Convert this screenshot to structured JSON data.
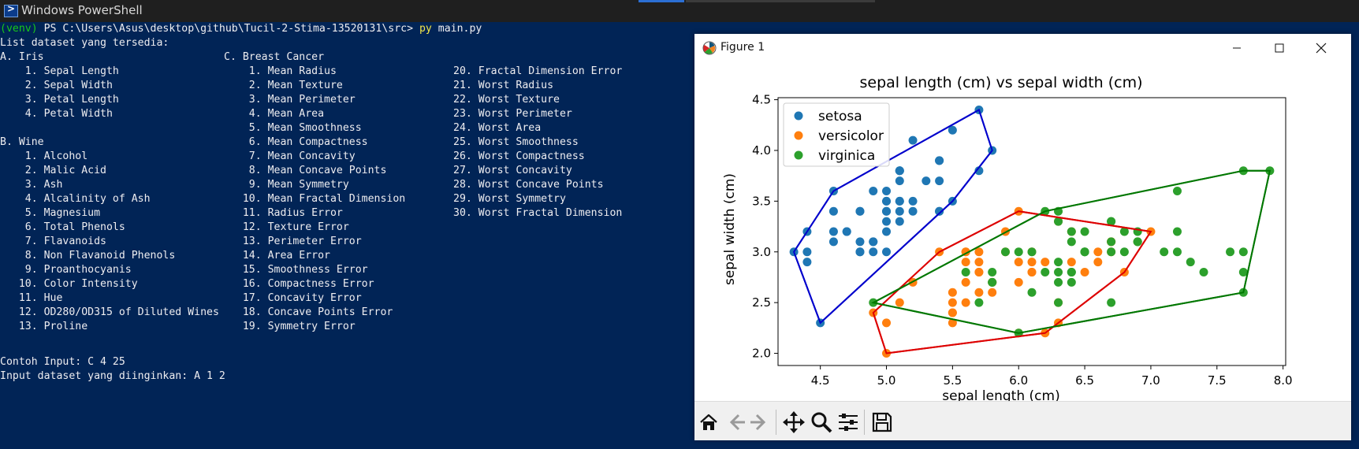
{
  "window": {
    "title": "Windows PowerShell"
  },
  "terminal": {
    "prompt_env": "(venv)",
    "prompt_path": " PS C:\\Users\\Asus\\desktop\\github\\Tucil-2-Stima-13520131\\src> ",
    "prompt_cmd": "py",
    "prompt_arg": " main.py",
    "heading": "List dataset yang tersedia:",
    "col_a": [
      "A. Iris",
      "    1. Sepal Length",
      "    2. Sepal Width",
      "    3. Petal Length",
      "    4. Petal Width",
      "",
      "B. Wine",
      "    1. Alcohol",
      "    2. Malic Acid",
      "    3. Ash",
      "    4. Alcalinity of Ash",
      "    5. Magnesium",
      "    6. Total Phenols",
      "    7. Flavanoids",
      "    8. Non Flavanoid Phenols",
      "    9. Proanthocyanis",
      "   10. Color Intensity",
      "   11. Hue",
      "   12. OD280/OD315 of Diluted Wines",
      "   13. Proline"
    ],
    "col_c": [
      "C. Breast Cancer",
      "    1. Mean Radius",
      "    2. Mean Texture",
      "    3. Mean Perimeter",
      "    4. Mean Area",
      "    5. Mean Smoothness",
      "    6. Mean Compactness",
      "    7. Mean Concavity",
      "    8. Mean Concave Points",
      "    9. Mean Symmetry",
      "   10. Mean Fractal Dimension",
      "   11. Radius Error",
      "   12. Texture Error",
      "   13. Perimeter Error",
      "   14. Area Error",
      "   15. Smoothness Error",
      "   16. Compactness Error",
      "   17. Concavity Error",
      "   18. Concave Points Error",
      "   19. Symmetry Error"
    ],
    "col_d": [
      "",
      "20. Fractal Dimension Error",
      "21. Worst Radius",
      "22. Worst Texture",
      "23. Worst Perimeter",
      "24. Worst Area",
      "25. Worst Smoothness",
      "26. Worst Compactness",
      "27. Worst Concavity",
      "28. Worst Concave Points",
      "29. Worst Symmetry",
      "30. Worst Fractal Dimension"
    ],
    "example": "Contoh Input: C 4 25",
    "input_prompt": "Input dataset yang diinginkan: A 1 2"
  },
  "figure": {
    "window_title": "Figure 1",
    "toolbar": {
      "home": "home-icon",
      "back": "arrow-left-icon",
      "forward": "arrow-right-icon",
      "pan": "move-icon",
      "zoom": "magnifier-icon",
      "configure": "sliders-icon",
      "save": "floppy-disk-icon"
    }
  },
  "chart_data": {
    "type": "scatter",
    "title": "sepal length (cm) vs sepal width (cm)",
    "xlabel": "sepal length (cm)",
    "ylabel": "sepal width (cm)",
    "xlim": [
      4.18,
      8.02
    ],
    "ylim": [
      1.88,
      4.52
    ],
    "xticks": [
      4.5,
      5.0,
      5.5,
      6.0,
      6.5,
      7.0,
      7.5,
      8.0
    ],
    "yticks": [
      2.0,
      2.5,
      3.0,
      3.5,
      4.0,
      4.5
    ],
    "tick_format": 1,
    "grid": false,
    "legend_position": "top-left",
    "series": [
      {
        "name": "setosa",
        "color": "#1f77b4",
        "hull_color": "#0000cc",
        "points": [
          [
            5.1,
            3.5
          ],
          [
            4.9,
            3.0
          ],
          [
            4.7,
            3.2
          ],
          [
            4.6,
            3.1
          ],
          [
            5.0,
            3.6
          ],
          [
            5.4,
            3.9
          ],
          [
            4.6,
            3.4
          ],
          [
            5.0,
            3.4
          ],
          [
            4.4,
            2.9
          ],
          [
            4.9,
            3.1
          ],
          [
            5.4,
            3.7
          ],
          [
            4.8,
            3.4
          ],
          [
            4.8,
            3.0
          ],
          [
            4.3,
            3.0
          ],
          [
            5.8,
            4.0
          ],
          [
            5.7,
            4.4
          ],
          [
            5.4,
            3.9
          ],
          [
            5.1,
            3.5
          ],
          [
            5.7,
            3.8
          ],
          [
            5.1,
            3.8
          ],
          [
            5.4,
            3.4
          ],
          [
            5.1,
            3.7
          ],
          [
            4.6,
            3.6
          ],
          [
            5.1,
            3.3
          ],
          [
            4.8,
            3.4
          ],
          [
            5.0,
            3.0
          ],
          [
            5.0,
            3.4
          ],
          [
            5.2,
            3.5
          ],
          [
            5.2,
            3.4
          ],
          [
            4.7,
            3.2
          ],
          [
            4.8,
            3.1
          ],
          [
            5.4,
            3.4
          ],
          [
            5.2,
            4.1
          ],
          [
            5.5,
            4.2
          ],
          [
            4.9,
            3.1
          ],
          [
            5.0,
            3.2
          ],
          [
            5.5,
            3.5
          ],
          [
            4.9,
            3.6
          ],
          [
            4.4,
            3.0
          ],
          [
            5.1,
            3.4
          ],
          [
            5.0,
            3.5
          ],
          [
            4.5,
            2.3
          ],
          [
            4.4,
            3.2
          ],
          [
            5.0,
            3.5
          ],
          [
            5.1,
            3.8
          ],
          [
            4.8,
            3.0
          ],
          [
            5.1,
            3.8
          ],
          [
            4.6,
            3.2
          ],
          [
            5.3,
            3.7
          ],
          [
            5.0,
            3.3
          ]
        ],
        "hull": [
          [
            4.5,
            2.3
          ],
          [
            5.5,
            3.5
          ],
          [
            5.8,
            4.0
          ],
          [
            5.7,
            4.4
          ],
          [
            4.6,
            3.6
          ],
          [
            4.4,
            3.2
          ],
          [
            4.3,
            3.0
          ]
        ]
      },
      {
        "name": "versicolor",
        "color": "#ff7f0e",
        "hull_color": "#dd0000",
        "points": [
          [
            7.0,
            3.2
          ],
          [
            6.4,
            3.2
          ],
          [
            6.9,
            3.1
          ],
          [
            5.5,
            2.3
          ],
          [
            6.5,
            2.8
          ],
          [
            5.7,
            2.8
          ],
          [
            6.3,
            3.3
          ],
          [
            4.9,
            2.4
          ],
          [
            6.6,
            2.9
          ],
          [
            5.2,
            2.7
          ],
          [
            5.0,
            2.0
          ],
          [
            5.9,
            3.0
          ],
          [
            6.0,
            2.2
          ],
          [
            6.1,
            2.9
          ],
          [
            5.6,
            2.9
          ],
          [
            6.7,
            3.1
          ],
          [
            5.6,
            3.0
          ],
          [
            5.8,
            2.7
          ],
          [
            6.2,
            2.2
          ],
          [
            5.6,
            2.5
          ],
          [
            5.9,
            3.2
          ],
          [
            6.1,
            2.8
          ],
          [
            6.3,
            2.5
          ],
          [
            6.1,
            2.8
          ],
          [
            6.4,
            2.9
          ],
          [
            6.6,
            3.0
          ],
          [
            6.8,
            2.8
          ],
          [
            6.7,
            3.0
          ],
          [
            6.0,
            2.9
          ],
          [
            5.7,
            2.6
          ],
          [
            5.5,
            2.4
          ],
          [
            5.5,
            2.4
          ],
          [
            5.8,
            2.7
          ],
          [
            6.0,
            2.7
          ],
          [
            5.4,
            3.0
          ],
          [
            6.0,
            3.4
          ],
          [
            6.7,
            3.1
          ],
          [
            6.3,
            2.3
          ],
          [
            5.6,
            3.0
          ],
          [
            5.5,
            2.5
          ],
          [
            5.5,
            2.6
          ],
          [
            6.1,
            3.0
          ],
          [
            5.8,
            2.6
          ],
          [
            5.0,
            2.3
          ],
          [
            5.6,
            2.7
          ],
          [
            5.7,
            3.0
          ],
          [
            5.7,
            2.9
          ],
          [
            6.2,
            2.9
          ],
          [
            5.1,
            2.5
          ],
          [
            5.7,
            2.8
          ]
        ],
        "hull": [
          [
            5.0,
            2.0
          ],
          [
            6.2,
            2.2
          ],
          [
            6.8,
            2.8
          ],
          [
            7.0,
            3.2
          ],
          [
            6.0,
            3.4
          ],
          [
            5.4,
            3.0
          ],
          [
            4.9,
            2.4
          ]
        ]
      },
      {
        "name": "virginica",
        "color": "#2ca02c",
        "hull_color": "#007700",
        "points": [
          [
            6.3,
            3.3
          ],
          [
            5.8,
            2.7
          ],
          [
            7.1,
            3.0
          ],
          [
            6.3,
            2.9
          ],
          [
            6.5,
            3.0
          ],
          [
            7.6,
            3.0
          ],
          [
            4.9,
            2.5
          ],
          [
            7.3,
            2.9
          ],
          [
            6.7,
            2.5
          ],
          [
            7.2,
            3.6
          ],
          [
            6.5,
            3.2
          ],
          [
            6.4,
            2.7
          ],
          [
            6.8,
            3.0
          ],
          [
            5.7,
            2.5
          ],
          [
            5.8,
            2.8
          ],
          [
            6.4,
            3.2
          ],
          [
            6.5,
            3.0
          ],
          [
            7.7,
            3.8
          ],
          [
            7.7,
            2.6
          ],
          [
            6.0,
            2.2
          ],
          [
            6.9,
            3.2
          ],
          [
            5.6,
            2.8
          ],
          [
            7.7,
            2.8
          ],
          [
            6.3,
            2.7
          ],
          [
            6.7,
            3.3
          ],
          [
            7.2,
            3.2
          ],
          [
            6.2,
            2.8
          ],
          [
            6.1,
            3.0
          ],
          [
            6.4,
            2.8
          ],
          [
            7.2,
            3.0
          ],
          [
            7.4,
            2.8
          ],
          [
            7.9,
            3.8
          ],
          [
            6.4,
            2.8
          ],
          [
            6.3,
            2.8
          ],
          [
            6.1,
            2.6
          ],
          [
            7.7,
            3.0
          ],
          [
            6.3,
            3.4
          ],
          [
            6.4,
            3.1
          ],
          [
            6.0,
            3.0
          ],
          [
            6.9,
            3.1
          ],
          [
            6.7,
            3.1
          ],
          [
            6.9,
            3.1
          ],
          [
            5.8,
            2.7
          ],
          [
            6.8,
            3.2
          ],
          [
            6.7,
            3.3
          ],
          [
            6.7,
            3.0
          ],
          [
            6.3,
            2.5
          ],
          [
            6.5,
            3.0
          ],
          [
            6.2,
            3.4
          ],
          [
            5.9,
            3.0
          ]
        ],
        "hull": [
          [
            6.0,
            2.2
          ],
          [
            7.7,
            2.6
          ],
          [
            7.9,
            3.8
          ],
          [
            7.7,
            3.8
          ],
          [
            6.2,
            3.4
          ],
          [
            4.9,
            2.5
          ]
        ]
      }
    ]
  }
}
